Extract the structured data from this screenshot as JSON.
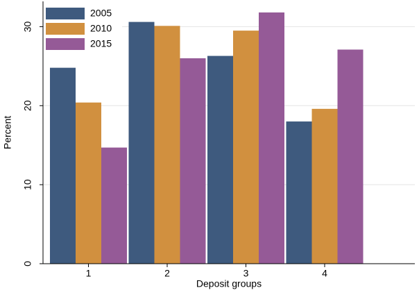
{
  "chart_data": {
    "type": "bar",
    "xlabel": "Deposit groups",
    "ylabel": "Percent",
    "categories": [
      "1",
      "2",
      "3",
      "4"
    ],
    "series": [
      {
        "name": "2005",
        "color": "#3e5a7e",
        "values": [
          24.8,
          30.6,
          26.3,
          18.0
        ]
      },
      {
        "name": "2010",
        "color": "#d1903f",
        "values": [
          20.4,
          30.1,
          29.5,
          19.6
        ]
      },
      {
        "name": "2015",
        "color": "#955a97",
        "values": [
          14.7,
          26.0,
          31.8,
          27.1
        ]
      }
    ],
    "ylim": [
      0,
      33.2
    ],
    "yticks": [
      0,
      10,
      20,
      30
    ],
    "grid": true,
    "legend": "top-left"
  }
}
